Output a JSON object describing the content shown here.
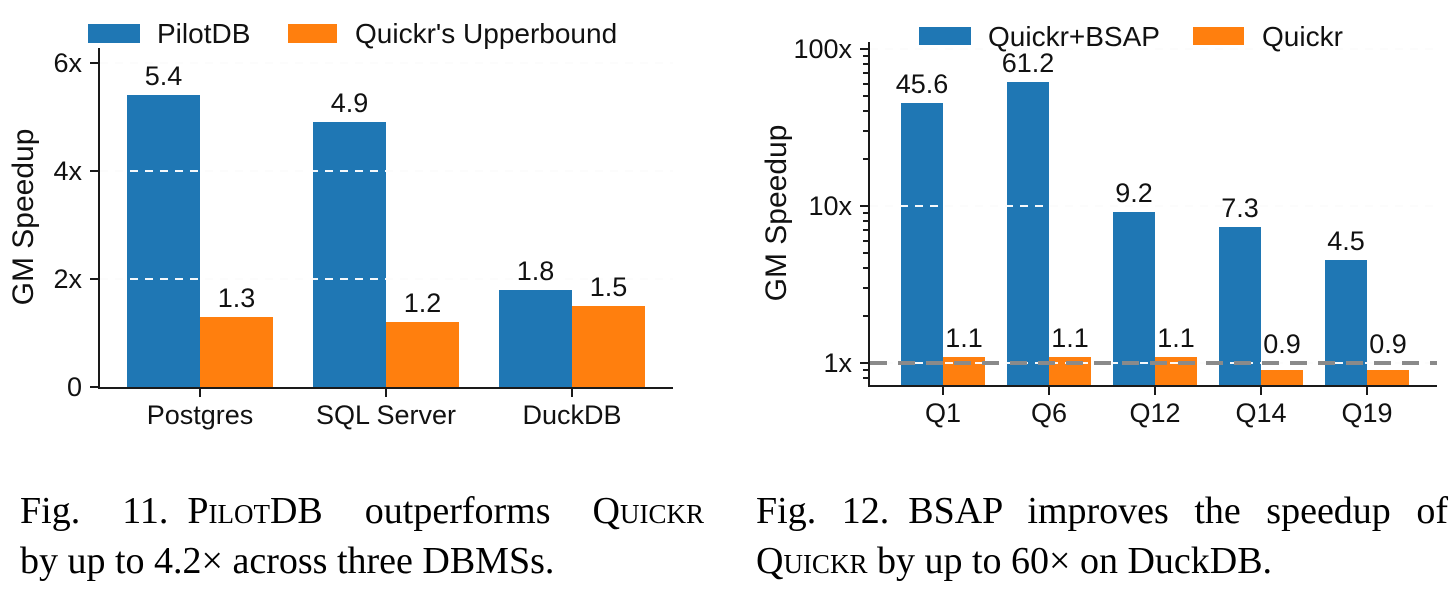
{
  "chart_data": [
    {
      "type": "bar",
      "title": "",
      "ylabel": "GM Speedup",
      "xlabel": "",
      "yscale": "linear",
      "ylim": [
        0,
        6.33
      ],
      "grid": "dashed-horizontal",
      "legend_position": "top",
      "yticks": [
        {
          "v": 0,
          "label": "0"
        },
        {
          "v": 2,
          "label": "2x"
        },
        {
          "v": 4,
          "label": "4x"
        },
        {
          "v": 6,
          "label": "6x"
        }
      ],
      "grid_values": [
        2,
        4,
        6
      ],
      "categories": [
        "Postgres",
        "SQL Server",
        "DuckDB"
      ],
      "series": [
        {
          "name": "PilotDB",
          "color": "#1f77b4",
          "values": [
            5.4,
            4.9,
            1.8
          ],
          "labels": [
            "5.4",
            "4.9",
            "1.8"
          ]
        },
        {
          "name": "Quickr's Upperbound",
          "color": "#ff7f0e",
          "values": [
            1.3,
            1.2,
            1.5
          ],
          "labels": [
            "1.3",
            "1.2",
            "1.5"
          ]
        }
      ]
    },
    {
      "type": "bar",
      "title": "",
      "ylabel": "GM Speedup",
      "xlabel": "",
      "yscale": "log",
      "ylim": [
        0.72,
        115
      ],
      "grid": "dashed-horizontal",
      "legend_position": "top",
      "yticks": [
        {
          "v": 1,
          "label": "1x"
        },
        {
          "v": 10,
          "label": "10x"
        },
        {
          "v": 100,
          "label": "100x"
        }
      ],
      "grid_values": [
        1,
        10,
        100
      ],
      "refline": {
        "v": 1,
        "color": "#8a8a8a",
        "style": "dashed"
      },
      "categories": [
        "Q1",
        "Q6",
        "Q12",
        "Q14",
        "Q19"
      ],
      "series": [
        {
          "name": "Quickr+BSAP",
          "color": "#1f77b4",
          "values": [
            45.6,
            61.2,
            9.2,
            7.3,
            4.5
          ],
          "labels": [
            "45.6",
            "61.2",
            "9.2",
            "7.3",
            "4.5"
          ]
        },
        {
          "name": "Quickr",
          "color": "#ff7f0e",
          "values": [
            1.1,
            1.1,
            1.1,
            0.9,
            0.9
          ],
          "labels": [
            "1.1",
            "1.1",
            "1.1",
            "0.9",
            "0.9"
          ]
        }
      ]
    }
  ],
  "figures": [
    {
      "caption": {
        "lines": [
          {
            "justify": true,
            "segments": [
              {
                "t": "Fig. 11. "
              },
              {
                "t": "Pilot",
                "sc": true
              },
              {
                "t": "DB outperforms "
              },
              {
                "t": "Quickr",
                "sc": true
              }
            ]
          },
          {
            "justify": false,
            "segments": [
              {
                "t": "by up to 4.2× across three DBMSs."
              }
            ]
          }
        ]
      }
    },
    {
      "caption": {
        "lines": [
          {
            "justify": true,
            "segments": [
              {
                "t": "Fig. 12. "
              },
              {
                "t": "BSAP improves the speedup of"
              }
            ]
          },
          {
            "justify": false,
            "segments": [
              {
                "t": "Quickr",
                "sc": true
              },
              {
                "t": " by up to 60× on DuckDB."
              }
            ]
          }
        ]
      }
    }
  ],
  "colors": {
    "bar_blue": "#1f77b4",
    "bar_orange": "#ff7f0e",
    "gridline": "#c9c9c9",
    "refline_gray": "#8a8a8a"
  }
}
